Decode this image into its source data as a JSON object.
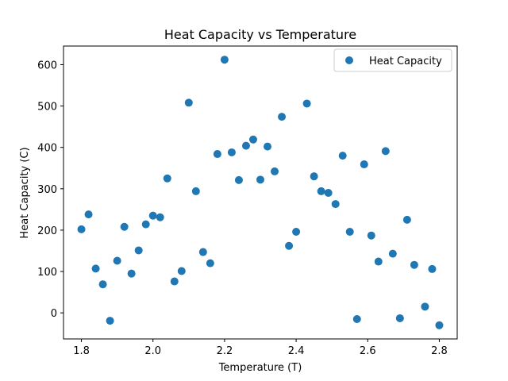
{
  "chart_data": {
    "type": "scatter",
    "title": "Heat Capacity vs Temperature",
    "xlabel": "Temperature (T)",
    "ylabel": "Heat Capacity (C)",
    "xlim": [
      1.75,
      2.85
    ],
    "ylim": [
      -63,
      645
    ],
    "xticks": [
      1.8,
      2.0,
      2.2,
      2.4,
      2.6,
      2.8
    ],
    "xtick_labels": [
      "1.8",
      "2.0",
      "2.2",
      "2.4",
      "2.6",
      "2.8"
    ],
    "yticks": [
      0,
      100,
      200,
      300,
      400,
      500,
      600
    ],
    "ytick_labels": [
      "0",
      "100",
      "200",
      "300",
      "400",
      "500",
      "600"
    ],
    "grid": false,
    "legend_position": "top-right",
    "series": [
      {
        "name": "Heat Capacity",
        "color": "#1f77b4",
        "x": [
          1.8,
          1.82,
          1.84,
          1.86,
          1.88,
          1.9,
          1.92,
          1.94,
          1.96,
          1.98,
          2.0,
          2.02,
          2.04,
          2.06,
          2.08,
          2.1,
          2.12,
          2.14,
          2.16,
          2.18,
          2.2,
          2.22,
          2.24,
          2.26,
          2.28,
          2.3,
          2.32,
          2.34,
          2.36,
          2.38,
          2.4,
          2.43,
          2.45,
          2.47,
          2.49,
          2.51,
          2.53,
          2.55,
          2.57,
          2.59,
          2.61,
          2.63,
          2.65,
          2.67,
          2.69,
          2.71,
          2.73,
          2.76,
          2.78,
          2.8
        ],
        "y": [
          202,
          238,
          107,
          69,
          -19,
          126,
          208,
          95,
          151,
          214,
          235,
          231,
          325,
          76,
          101,
          508,
          294,
          147,
          120,
          384,
          612,
          388,
          321,
          404,
          419,
          322,
          402,
          342,
          474,
          162,
          196,
          506,
          330,
          294,
          290,
          263,
          380,
          196,
          -15,
          359,
          187,
          124,
          391,
          143,
          -13,
          225,
          116,
          15,
          106,
          -30
        ]
      }
    ]
  }
}
